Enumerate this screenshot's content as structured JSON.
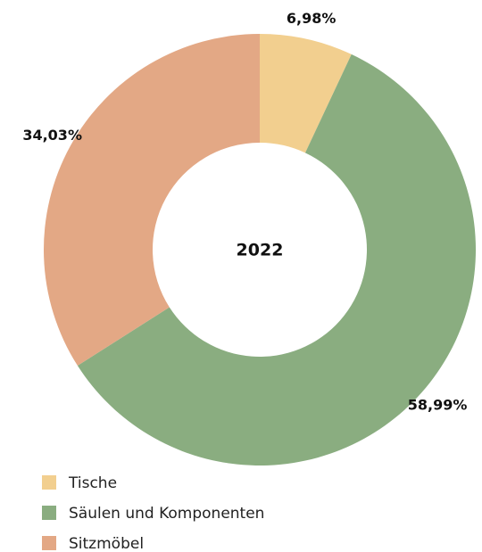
{
  "chart_data": {
    "type": "pie",
    "title": "2022",
    "categories": [
      "Tische",
      "Säulen und Komponenten",
      "Sitzmöbel"
    ],
    "values": [
      6.98,
      58.99,
      34.03
    ],
    "value_labels": [
      "6,98%",
      "58,99%",
      "34,03%"
    ],
    "colors": [
      "#f2cf8f",
      "#8aad80",
      "#e3a885"
    ],
    "donut": true,
    "legend": "bottom-left"
  }
}
